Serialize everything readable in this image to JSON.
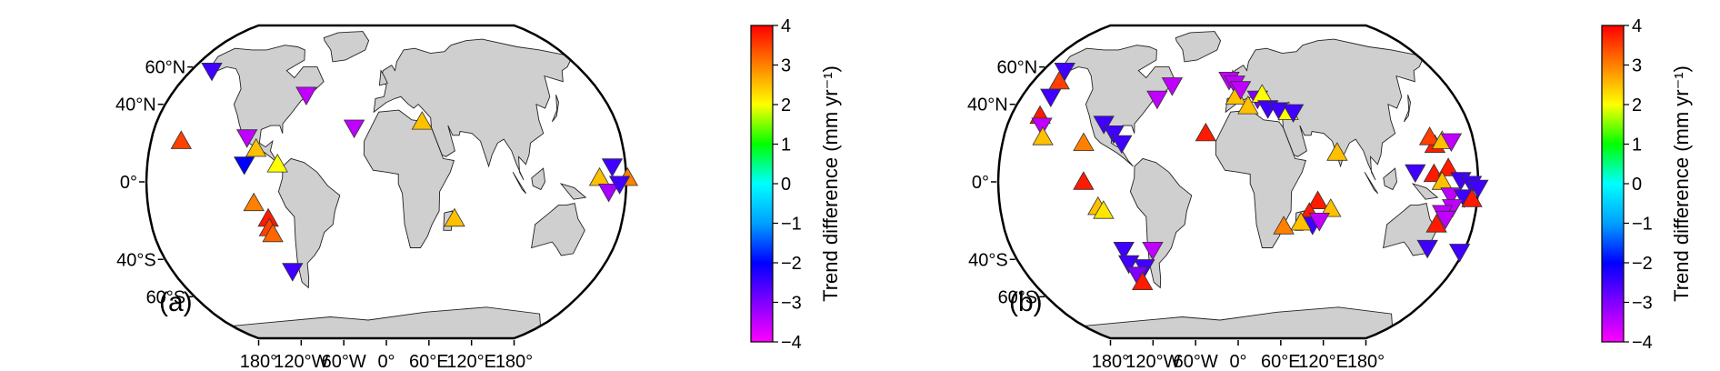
{
  "chart_data": [
    {
      "type": "scatter",
      "panel_label": "(a)",
      "projection": "Robinson",
      "marker": "triangle",
      "x_ticks": [
        "180°",
        "120°W",
        "60°W",
        "0°",
        "60°E",
        "120°E",
        "180°"
      ],
      "y_ticks": [
        "60°N",
        "40°N",
        "0°",
        "40°S",
        "60°S"
      ],
      "colorbar": {
        "label": "Trend difference (mm yr⁻¹)",
        "range": [
          -4,
          4
        ],
        "ticks": [
          "4",
          "3",
          "2",
          "1",
          "0",
          "−1",
          "−2",
          "−3",
          "−4"
        ]
      },
      "points": [
        {
          "lon": -161,
          "lat": 58,
          "value": -2.5,
          "dir": "down"
        },
        {
          "lon": -67,
          "lat": 45,
          "value": -3.5,
          "dir": "down"
        },
        {
          "lon": -157,
          "lat": 21,
          "value": 3.5,
          "dir": "up"
        },
        {
          "lon": -107,
          "lat": 23,
          "value": -3.5,
          "dir": "down"
        },
        {
          "lon": -99,
          "lat": 17,
          "value": 2.5,
          "dir": "up"
        },
        {
          "lon": -82,
          "lat": 9,
          "value": 2,
          "dir": "up"
        },
        {
          "lon": -107,
          "lat": 9,
          "value": -2,
          "dir": "down"
        },
        {
          "lon": -25,
          "lat": 28,
          "value": -3.5,
          "dir": "down"
        },
        {
          "lon": 28,
          "lat": 31,
          "value": 2.5,
          "dir": "up"
        },
        {
          "lon": -100,
          "lat": -11,
          "value": 3,
          "dir": "up"
        },
        {
          "lon": -90,
          "lat": -19,
          "value": 3.8,
          "dir": "up"
        },
        {
          "lon": -90,
          "lat": -24,
          "value": 3.5,
          "dir": "up"
        },
        {
          "lon": -88,
          "lat": -27,
          "value": 3.2,
          "dir": "up"
        },
        {
          "lon": -79,
          "lat": -46,
          "value": -2.5,
          "dir": "down"
        },
        {
          "lon": 52,
          "lat": -19,
          "value": 2.5,
          "dir": "up"
        },
        {
          "lon": 170,
          "lat": 8,
          "value": -2.5,
          "dir": "down"
        },
        {
          "lon": 160,
          "lat": 2,
          "value": 2.5,
          "dir": "up"
        },
        {
          "lon": 181,
          "lat": 2,
          "value": 3,
          "dir": "up"
        },
        {
          "lon": 167,
          "lat": -5,
          "value": -3.3,
          "dir": "down"
        },
        {
          "lon": 175,
          "lat": -1,
          "value": -2.5,
          "dir": "down"
        }
      ]
    },
    {
      "type": "scatter",
      "panel_label": "(b)",
      "projection": "Robinson",
      "marker": "triangle",
      "x_ticks": [
        "180°",
        "120°W",
        "60°W",
        "0°",
        "60°E",
        "120°E",
        "180°"
      ],
      "y_ticks": [
        "60°N",
        "40°N",
        "0°",
        "40°S",
        "60°S"
      ],
      "colorbar": {
        "label": "Trend difference (mm yr⁻¹)",
        "range": [
          -4,
          4
        ],
        "ticks": [
          "4",
          "3",
          "2",
          "1",
          "0",
          "−1",
          "−2",
          "−3",
          "−4"
        ]
      },
      "points": [
        {
          "lon": -160,
          "lat": 58,
          "value": -2.5,
          "dir": "down"
        },
        {
          "lon": -157,
          "lat": 52,
          "value": 3.5,
          "dir": "up"
        },
        {
          "lon": -156,
          "lat": 44,
          "value": -2.5,
          "dir": "down"
        },
        {
          "lon": -157,
          "lat": 34,
          "value": 3.8,
          "dir": "up"
        },
        {
          "lon": -153,
          "lat": 29,
          "value": -3.5,
          "dir": "down"
        },
        {
          "lon": -150,
          "lat": 23,
          "value": 2.5,
          "dir": "up"
        },
        {
          "lon": -57,
          "lat": 50,
          "value": -3.5,
          "dir": "down"
        },
        {
          "lon": -67,
          "lat": 43,
          "value": -3.5,
          "dir": "down"
        },
        {
          "lon": -105,
          "lat": 30,
          "value": -2.5,
          "dir": "down"
        },
        {
          "lon": -96,
          "lat": 25,
          "value": -2.5,
          "dir": "down"
        },
        {
          "lon": -118,
          "lat": 20,
          "value": 3,
          "dir": "up"
        },
        {
          "lon": -89,
          "lat": 20,
          "value": -2.5,
          "dir": "down"
        },
        {
          "lon": -116,
          "lat": 0,
          "value": 3.8,
          "dir": "up"
        },
        {
          "lon": -106,
          "lat": -13,
          "value": 2.5,
          "dir": "up"
        },
        {
          "lon": -102,
          "lat": -15,
          "value": 2.2,
          "dir": "up"
        },
        {
          "lon": -91,
          "lat": -35,
          "value": -2.5,
          "dir": "down"
        },
        {
          "lon": -90,
          "lat": -42,
          "value": -2.5,
          "dir": "down"
        },
        {
          "lon": -78,
          "lat": -44,
          "value": -2.5,
          "dir": "down"
        },
        {
          "lon": -86,
          "lat": -48,
          "value": -3,
          "dir": "down"
        },
        {
          "lon": -84,
          "lat": -52,
          "value": 3.8,
          "dir": "up"
        },
        {
          "lon": -68,
          "lat": -35,
          "value": -3.5,
          "dir": "down"
        },
        {
          "lon": -25,
          "lat": 25,
          "value": 3.8,
          "dir": "up"
        },
        {
          "lon": -8,
          "lat": 53,
          "value": -3.5,
          "dir": "down"
        },
        {
          "lon": -3,
          "lat": 51,
          "value": -3.5,
          "dir": "down"
        },
        {
          "lon": -2,
          "lat": 44,
          "value": 2.5,
          "dir": "up"
        },
        {
          "lon": 2,
          "lat": 48,
          "value": -3.5,
          "dir": "down"
        },
        {
          "lon": 8,
          "lat": 39,
          "value": 2.5,
          "dir": "up"
        },
        {
          "lon": 16,
          "lat": 43,
          "value": -3,
          "dir": "down"
        },
        {
          "lon": 20,
          "lat": 45,
          "value": 2,
          "dir": "up"
        },
        {
          "lon": 24,
          "lat": 38,
          "value": -2.5,
          "dir": "down"
        },
        {
          "lon": 33,
          "lat": 37,
          "value": -2.5,
          "dir": "down"
        },
        {
          "lon": 40,
          "lat": 36,
          "value": 2,
          "dir": "up"
        },
        {
          "lon": 44,
          "lat": 36,
          "value": -2.5,
          "dir": "down"
        },
        {
          "lon": 75,
          "lat": 15,
          "value": 2.5,
          "dir": "up"
        },
        {
          "lon": 60,
          "lat": -10,
          "value": 3.8,
          "dir": "up"
        },
        {
          "lon": 54,
          "lat": -16,
          "value": 3.8,
          "dir": "up"
        },
        {
          "lon": 57,
          "lat": -22,
          "value": -2.5,
          "dir": "down"
        },
        {
          "lon": 48,
          "lat": -21,
          "value": 2.5,
          "dir": "up"
        },
        {
          "lon": 70,
          "lat": -14,
          "value": 2.5,
          "dir": "up"
        },
        {
          "lon": 35,
          "lat": -23,
          "value": 3,
          "dir": "up"
        },
        {
          "lon": 62,
          "lat": -20,
          "value": -3.5,
          "dir": "down"
        },
        {
          "lon": 150,
          "lat": 19,
          "value": 3.8,
          "dir": "up"
        },
        {
          "lon": 147,
          "lat": 23,
          "value": 3.5,
          "dir": "up"
        },
        {
          "lon": 156,
          "lat": 21,
          "value": 2.5,
          "dir": "up"
        },
        {
          "lon": 163,
          "lat": 21,
          "value": -3.5,
          "dir": "down"
        },
        {
          "lon": 133,
          "lat": 5,
          "value": -2.5,
          "dir": "down"
        },
        {
          "lon": 147,
          "lat": 4,
          "value": 3.8,
          "dir": "up"
        },
        {
          "lon": 158,
          "lat": 7,
          "value": 3.8,
          "dir": "up"
        },
        {
          "lon": 153,
          "lat": 0,
          "value": 2.5,
          "dir": "up"
        },
        {
          "lon": 167,
          "lat": 1,
          "value": -2.5,
          "dir": "down"
        },
        {
          "lon": 175,
          "lat": -1,
          "value": -2.5,
          "dir": "down"
        },
        {
          "lon": 180,
          "lat": -3,
          "value": -2.5,
          "dir": "down"
        },
        {
          "lon": 160,
          "lat": -7,
          "value": -3.5,
          "dir": "down"
        },
        {
          "lon": 170,
          "lat": -8,
          "value": -2.5,
          "dir": "down"
        },
        {
          "lon": 176,
          "lat": -9,
          "value": 3.8,
          "dir": "up"
        },
        {
          "lon": 162,
          "lat": -13,
          "value": -3.5,
          "dir": "down"
        },
        {
          "lon": 155,
          "lat": -16,
          "value": -3.5,
          "dir": "down"
        },
        {
          "lon": 158,
          "lat": -19,
          "value": -3.5,
          "dir": "down"
        },
        {
          "lon": 152,
          "lat": -22,
          "value": 3.8,
          "dir": "up"
        },
        {
          "lon": 150,
          "lat": -34,
          "value": -2.5,
          "dir": "down"
        },
        {
          "lon": 177,
          "lat": -36,
          "value": -2.5,
          "dir": "down"
        }
      ]
    }
  ]
}
